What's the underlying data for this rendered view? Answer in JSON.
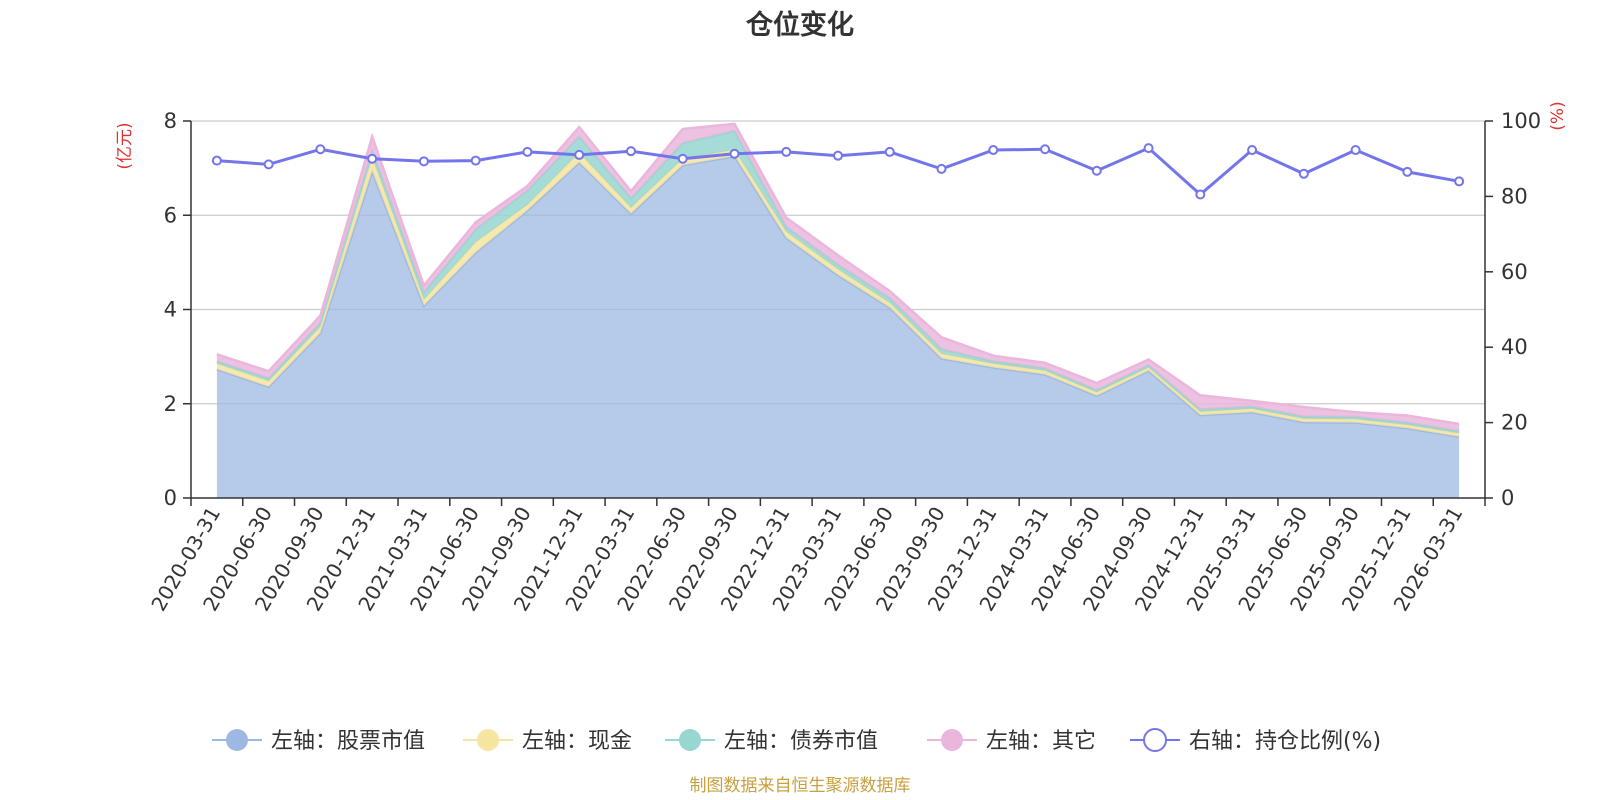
{
  "chart_data": {
    "type": "area",
    "title": "仓位变化",
    "left_axis_label": "(亿元)",
    "right_axis_label": "(%)",
    "left_ylim": [
      0,
      8
    ],
    "left_yticks": [
      0,
      2,
      4,
      6,
      8
    ],
    "right_ylim": [
      0,
      100
    ],
    "right_yticks": [
      0,
      20,
      40,
      60,
      80,
      100
    ],
    "categories": [
      "2020-03-31",
      "2020-06-30",
      "2020-09-30",
      "2020-12-31",
      "2021-03-31",
      "2021-06-30",
      "2021-09-30",
      "2021-12-31",
      "2022-03-31",
      "2022-06-30",
      "2022-09-30",
      "2022-12-31",
      "2023-03-31",
      "2023-06-30",
      "2023-09-30",
      "2023-12-31",
      "2024-03-31",
      "2024-06-30",
      "2024-09-30",
      "2024-12-31",
      "2025-03-31",
      "2025-06-30",
      "2025-09-30",
      "2025-12-31",
      "2026-03-31"
    ],
    "stacked_series": [
      {
        "name": "左轴：股票市值",
        "color": "#9db8e2",
        "values": [
          2.73,
          2.36,
          3.5,
          6.93,
          4.08,
          5.21,
          6.1,
          7.12,
          6.03,
          7.06,
          7.25,
          5.52,
          4.73,
          4.04,
          2.96,
          2.77,
          2.62,
          2.17,
          2.7,
          1.76,
          1.82,
          1.61,
          1.6,
          1.48,
          1.3
        ]
      },
      {
        "name": "左轴：现金",
        "color": "#f6e4a1",
        "values": [
          0.12,
          0.12,
          0.13,
          0.3,
          0.13,
          0.22,
          0.12,
          0.21,
          0.13,
          0.14,
          0.14,
          0.13,
          0.12,
          0.1,
          0.1,
          0.08,
          0.08,
          0.07,
          0.07,
          0.07,
          0.07,
          0.07,
          0.07,
          0.07,
          0.07
        ]
      },
      {
        "name": "左轴：债券市值",
        "color": "#97d6d1",
        "values": [
          0.05,
          0.06,
          0.09,
          0.14,
          0.15,
          0.27,
          0.3,
          0.34,
          0.2,
          0.33,
          0.4,
          0.1,
          0.1,
          0.1,
          0.1,
          0.05,
          0.05,
          0.05,
          0.05,
          0.05,
          0.05,
          0.05,
          0.05,
          0.05,
          0.05
        ]
      },
      {
        "name": "左轴：其它",
        "color": "#eab6dc",
        "values": [
          0.15,
          0.15,
          0.15,
          0.3,
          0.15,
          0.15,
          0.1,
          0.2,
          0.15,
          0.3,
          0.15,
          0.2,
          0.2,
          0.15,
          0.25,
          0.12,
          0.12,
          0.15,
          0.12,
          0.3,
          0.12,
          0.2,
          0.1,
          0.15,
          0.15
        ]
      }
    ],
    "line_series": {
      "name": "右轴：持仓比例(%)",
      "color": "#7375ea",
      "values": [
        89.5,
        88.5,
        92.5,
        90.0,
        89.3,
        89.5,
        91.8,
        91.0,
        92.0,
        90.0,
        91.3,
        91.8,
        90.8,
        91.8,
        87.3,
        92.3,
        92.5,
        86.8,
        92.8,
        80.5,
        92.3,
        86.0,
        92.3,
        86.5,
        84.0
      ]
    },
    "legend": [
      {
        "label": "左轴：股票市值",
        "color": "#9db8e2",
        "kind": "area"
      },
      {
        "label": "左轴：现金",
        "color": "#f6e4a1",
        "kind": "area"
      },
      {
        "label": "左轴：债券市值",
        "color": "#97d6d1",
        "kind": "area"
      },
      {
        "label": "左轴：其它",
        "color": "#eab6dc",
        "kind": "area"
      },
      {
        "label": "右轴：持仓比例(%)",
        "color": "#7375ea",
        "kind": "line"
      }
    ],
    "footer": "制图数据来自恒生聚源数据库",
    "colors": {
      "left_axis_label": "#e03030",
      "right_axis_label": "#e03030",
      "footer": "#c8a040",
      "grid": "#cccccc",
      "axis": "#333333"
    }
  }
}
